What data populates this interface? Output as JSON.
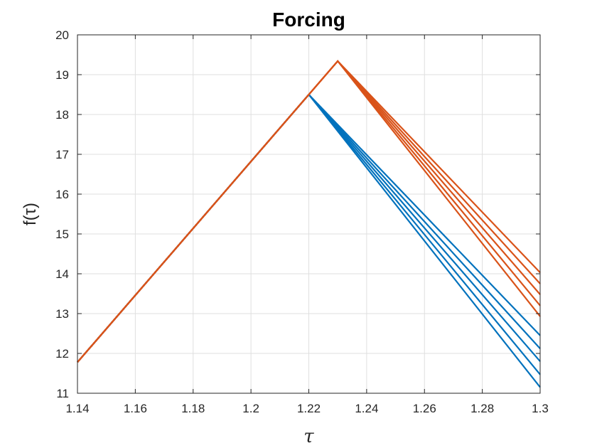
{
  "chart_data": {
    "type": "line",
    "title": "Forcing",
    "xlabel": "τ",
    "ylabel": "f(τ)",
    "xlim": [
      1.14,
      1.3
    ],
    "ylim": [
      11,
      20
    ],
    "xticks": [
      "1.14",
      "1.16",
      "1.18",
      "1.2",
      "1.22",
      "1.24",
      "1.26",
      "1.28",
      "1.3"
    ],
    "yticks": [
      "11",
      "12",
      "13",
      "14",
      "15",
      "16",
      "17",
      "18",
      "19",
      "20"
    ],
    "grid": true,
    "colors": {
      "blue": "#0072BD",
      "orange": "#D95319"
    },
    "series": [
      {
        "color": "#0072BD",
        "x": [
          1.14,
          1.22,
          1.3
        ],
        "y": [
          11.78,
          18.5,
          12.45
        ]
      },
      {
        "color": "#0072BD",
        "x": [
          1.14,
          1.22,
          1.3
        ],
        "y": [
          11.78,
          18.5,
          12.12
        ]
      },
      {
        "color": "#0072BD",
        "x": [
          1.14,
          1.22,
          1.3
        ],
        "y": [
          11.78,
          18.5,
          11.8
        ]
      },
      {
        "color": "#0072BD",
        "x": [
          1.14,
          1.22,
          1.3
        ],
        "y": [
          11.78,
          18.5,
          11.47
        ]
      },
      {
        "color": "#0072BD",
        "x": [
          1.14,
          1.22,
          1.3
        ],
        "y": [
          11.78,
          18.5,
          11.15
        ]
      },
      {
        "color": "#D95319",
        "x": [
          1.14,
          1.23,
          1.3
        ],
        "y": [
          11.78,
          19.34,
          14.03
        ]
      },
      {
        "color": "#D95319",
        "x": [
          1.14,
          1.23,
          1.3
        ],
        "y": [
          11.78,
          19.34,
          13.75
        ]
      },
      {
        "color": "#D95319",
        "x": [
          1.14,
          1.23,
          1.3
        ],
        "y": [
          11.78,
          19.34,
          13.48
        ]
      },
      {
        "color": "#D95319",
        "x": [
          1.14,
          1.23,
          1.3
        ],
        "y": [
          11.78,
          19.34,
          13.2
        ]
      },
      {
        "color": "#D95319",
        "x": [
          1.14,
          1.23,
          1.3
        ],
        "y": [
          11.78,
          19.34,
          12.93
        ]
      }
    ]
  }
}
